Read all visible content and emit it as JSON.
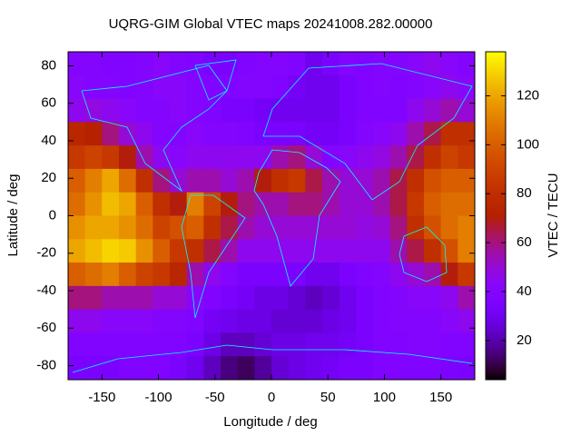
{
  "chart_data": {
    "type": "heatmap",
    "title": "UQRG-GIM Global VTEC maps 20241008.282.00000",
    "x_label": "Longitude / deg",
    "y_label": "Latitude / deg",
    "colorbar_label": "VTEC / TECU",
    "colormap": "gnuplot",
    "xlim": [
      -180,
      180
    ],
    "ylim": [
      -87.5,
      87.5
    ],
    "zlim": [
      4,
      138
    ],
    "xticks": [
      -150,
      -100,
      -50,
      0,
      50,
      100,
      150
    ],
    "yticks": [
      -80,
      -60,
      -40,
      -20,
      0,
      20,
      40,
      60,
      80
    ],
    "zticks": [
      20,
      40,
      60,
      80,
      100,
      120
    ],
    "xbins": [
      -180,
      -165,
      -150,
      -135,
      -120,
      -105,
      -90,
      -75,
      -60,
      -45,
      -30,
      -15,
      0,
      15,
      30,
      45,
      60,
      75,
      90,
      105,
      120,
      135,
      150,
      165,
      180
    ],
    "ybins": [
      87.5,
      75,
      62.5,
      50,
      37.5,
      25,
      12.5,
      0,
      -12.5,
      -25,
      -37.5,
      -50,
      -62.5,
      -75,
      -87.5
    ],
    "z": [
      [
        40,
        40,
        38,
        38,
        40,
        42,
        40,
        38,
        35,
        35,
        38,
        40,
        40,
        38,
        30,
        35,
        40,
        38,
        40,
        40,
        42,
        45,
        42,
        40
      ],
      [
        42,
        40,
        40,
        38,
        40,
        42,
        42,
        40,
        38,
        38,
        40,
        40,
        38,
        32,
        30,
        30,
        35,
        38,
        40,
        38,
        40,
        42,
        45,
        42
      ],
      [
        45,
        48,
        45,
        42,
        40,
        40,
        42,
        40,
        38,
        35,
        35,
        32,
        30,
        30,
        30,
        30,
        35,
        38,
        38,
        38,
        45,
        50,
        55,
        50
      ],
      [
        75,
        72,
        60,
        50,
        45,
        40,
        40,
        42,
        40,
        40,
        38,
        35,
        35,
        35,
        32,
        32,
        35,
        40,
        42,
        45,
        55,
        65,
        80,
        80
      ],
      [
        85,
        90,
        85,
        70,
        55,
        45,
        42,
        45,
        45,
        45,
        45,
        45,
        55,
        60,
        50,
        40,
        42,
        45,
        48,
        55,
        65,
        80,
        90,
        85
      ],
      [
        100,
        110,
        120,
        105,
        80,
        60,
        50,
        55,
        55,
        50,
        55,
        70,
        80,
        85,
        65,
        55,
        50,
        50,
        55,
        65,
        80,
        95,
        100,
        100
      ],
      [
        105,
        115,
        125,
        120,
        100,
        80,
        70,
        110,
        90,
        70,
        60,
        55,
        55,
        60,
        60,
        55,
        50,
        50,
        55,
        65,
        85,
        100,
        105,
        105
      ],
      [
        115,
        120,
        120,
        115,
        105,
        90,
        95,
        100,
        80,
        65,
        55,
        50,
        50,
        50,
        50,
        50,
        50,
        48,
        50,
        60,
        80,
        95,
        105,
        110
      ],
      [
        120,
        125,
        130,
        128,
        115,
        100,
        85,
        80,
        65,
        55,
        45,
        45,
        45,
        45,
        45,
        45,
        45,
        45,
        45,
        55,
        65,
        80,
        95,
        110
      ],
      [
        100,
        105,
        110,
        100,
        90,
        85,
        75,
        55,
        45,
        40,
        35,
        35,
        35,
        35,
        30,
        30,
        35,
        38,
        40,
        45,
        50,
        55,
        70,
        85
      ],
      [
        60,
        60,
        55,
        55,
        55,
        50,
        50,
        42,
        38,
        35,
        32,
        28,
        28,
        25,
        22,
        25,
        30,
        35,
        38,
        40,
        42,
        42,
        45,
        55
      ],
      [
        45,
        45,
        42,
        42,
        42,
        40,
        40,
        38,
        32,
        30,
        28,
        28,
        25,
        25,
        25,
        28,
        30,
        35,
        38,
        40,
        40,
        40,
        42,
        45
      ],
      [
        38,
        38,
        38,
        38,
        38,
        38,
        38,
        35,
        28,
        22,
        22,
        25,
        28,
        28,
        30,
        30,
        32,
        35,
        38,
        38,
        40,
        40,
        38,
        38
      ],
      [
        35,
        35,
        35,
        38,
        38,
        38,
        35,
        30,
        22,
        15,
        12,
        18,
        25,
        28,
        30,
        32,
        35,
        35,
        38,
        38,
        38,
        38,
        36,
        35
      ]
    ]
  }
}
